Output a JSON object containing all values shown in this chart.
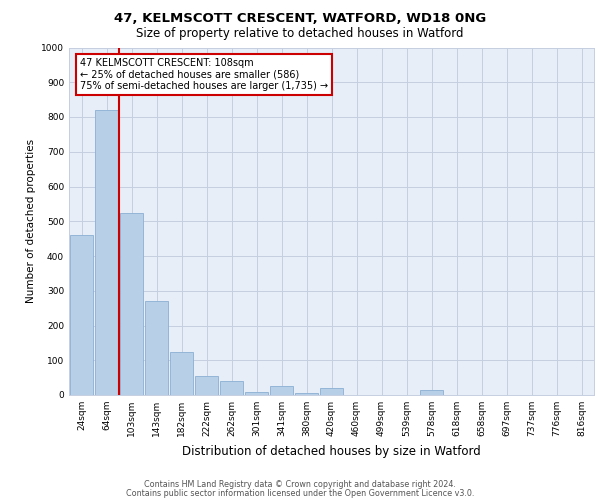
{
  "title1": "47, KELMSCOTT CRESCENT, WATFORD, WD18 0NG",
  "title2": "Size of property relative to detached houses in Watford",
  "xlabel": "Distribution of detached houses by size in Watford",
  "ylabel": "Number of detached properties",
  "categories": [
    "24sqm",
    "64sqm",
    "103sqm",
    "143sqm",
    "182sqm",
    "222sqm",
    "262sqm",
    "301sqm",
    "341sqm",
    "380sqm",
    "420sqm",
    "460sqm",
    "499sqm",
    "539sqm",
    "578sqm",
    "618sqm",
    "658sqm",
    "697sqm",
    "737sqm",
    "776sqm",
    "816sqm"
  ],
  "values": [
    460,
    820,
    525,
    270,
    125,
    55,
    40,
    10,
    25,
    5,
    20,
    0,
    0,
    0,
    15,
    0,
    0,
    0,
    0,
    0,
    0
  ],
  "bar_color": "#b8cfe8",
  "bar_edge_color": "#8bafd4",
  "annotation_text": "47 KELMSCOTT CRESCENT: 108sqm\n← 25% of detached houses are smaller (586)\n75% of semi-detached houses are larger (1,735) →",
  "red_line_x": 1.5,
  "ylim": [
    0,
    1000
  ],
  "yticks": [
    0,
    100,
    200,
    300,
    400,
    500,
    600,
    700,
    800,
    900,
    1000
  ],
  "footer1": "Contains HM Land Registry data © Crown copyright and database right 2024.",
  "footer2": "Contains public sector information licensed under the Open Government Licence v3.0.",
  "bg_color": "#e8eef8",
  "title_fontsize1": 9.5,
  "title_fontsize2": 8.5,
  "xlabel_fontsize": 8.5,
  "ylabel_fontsize": 7.5,
  "tick_fontsize": 6.5,
  "annotation_fontsize": 7.0,
  "footer_fontsize": 5.8
}
